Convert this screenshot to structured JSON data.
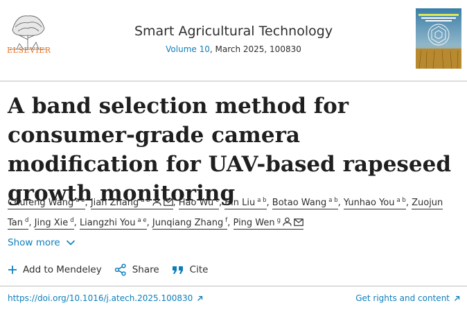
{
  "header": {
    "publisher": "ELSEVIER",
    "journal_title": "Smart Agricultural Technology",
    "volume_link": "Volume 10",
    "issue_rest": ", March 2025, 100830"
  },
  "article": {
    "title": "A band selection method for consumer-grade camera modification for UAV-based rapeseed growth monitoring"
  },
  "authors": [
    {
      "name": "Chufeng Wang",
      "sup": "a b",
      "person": false,
      "mail": false
    },
    {
      "name": "Jian Zhang",
      "sup": "a b",
      "person": true,
      "mail": true
    },
    {
      "name": "Hao Wu",
      "sup": "c",
      "person": false,
      "mail": false
    },
    {
      "name": "Bin Liu",
      "sup": "a b",
      "person": false,
      "mail": false
    },
    {
      "name": "Botao Wang",
      "sup": "a b",
      "person": false,
      "mail": false
    },
    {
      "name": "Yunhao You",
      "sup": "a b",
      "person": false,
      "mail": false
    },
    {
      "name": "Zuojun Tan",
      "sup": "d",
      "person": false,
      "mail": false
    },
    {
      "name": "Jing Xie",
      "sup": "d",
      "person": false,
      "mail": false
    },
    {
      "name": "Liangzhi You",
      "sup": "a e",
      "person": false,
      "mail": false
    },
    {
      "name": "Junqiang Zhang",
      "sup": "f",
      "person": false,
      "mail": false
    },
    {
      "name": "Ping Wen",
      "sup": "g",
      "person": true,
      "mail": true
    }
  ],
  "show_more": "Show more",
  "actions": {
    "mendeley": "Add to Mendeley",
    "share": "Share",
    "cite": "Cite"
  },
  "footer": {
    "doi": "https://doi.org/10.1016/j.atech.2025.100830",
    "rights": "Get rights and content"
  },
  "colors": {
    "link": "#0c7dbb",
    "publisher_orange": "#e9711c",
    "text": "#1f1f1f"
  }
}
